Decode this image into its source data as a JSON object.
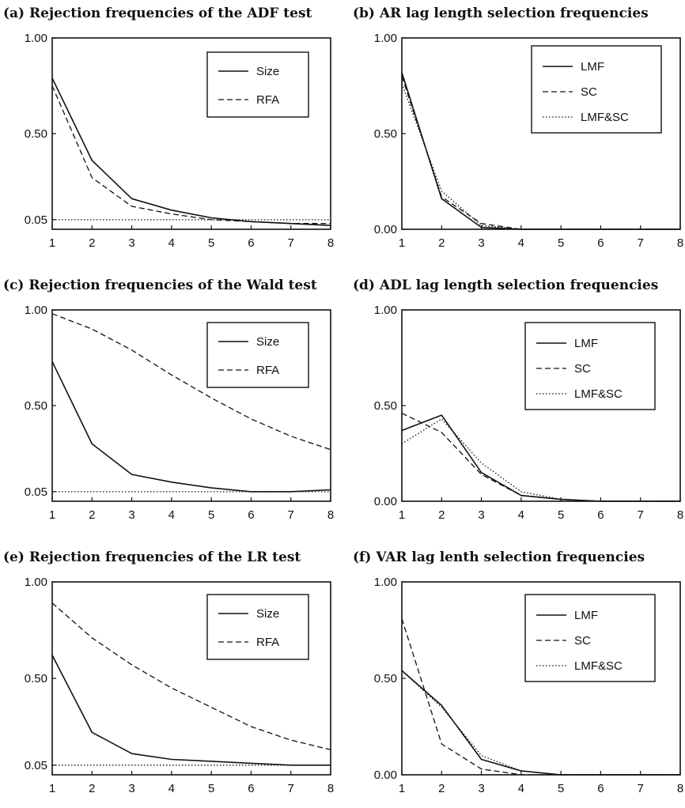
{
  "chart_data": [
    {
      "id": "a",
      "type": "line",
      "title": "(a) Rejection frequencies of the ADF test",
      "x": [
        1,
        2,
        3,
        4,
        5,
        6,
        7,
        8
      ],
      "ylim": [
        0.0,
        1.0
      ],
      "yticks": [
        {
          "value": 0.05,
          "label": "0.05"
        },
        {
          "value": 0.5,
          "label": "0.50"
        },
        {
          "value": 1.0,
          "label": "1.00"
        }
      ],
      "xticks": [
        "1",
        "2",
        "3",
        "4",
        "5",
        "6",
        "7",
        "8"
      ],
      "series": [
        {
          "name": "Size",
          "dash": "solid",
          "values": [
            0.79,
            0.36,
            0.16,
            0.1,
            0.06,
            0.04,
            0.03,
            0.02
          ]
        },
        {
          "name": "RFA",
          "dash": "dashed",
          "values": [
            0.75,
            0.27,
            0.12,
            0.08,
            0.05,
            0.04,
            0.03,
            0.03
          ]
        },
        {
          "name": "",
          "dash": "dotted",
          "values": [
            0.05,
            0.05,
            0.05,
            0.05,
            0.05,
            0.05,
            0.05,
            0.05
          ]
        }
      ]
    },
    {
      "id": "b",
      "type": "line",
      "title": "(b) AR lag length selection frequencies",
      "x": [
        1,
        2,
        3,
        4,
        5,
        6,
        7,
        8
      ],
      "ylim": [
        0.0,
        1.0
      ],
      "yticks": [
        {
          "value": 0.0,
          "label": "0.00"
        },
        {
          "value": 0.5,
          "label": "0.50"
        },
        {
          "value": 1.0,
          "label": "1.00"
        }
      ],
      "xticks": [
        "1",
        "2",
        "3",
        "4",
        "5",
        "6",
        "7",
        "8"
      ],
      "series": [
        {
          "name": "LMF",
          "dash": "solid",
          "values": [
            0.82,
            0.16,
            0.01,
            0.0,
            0.0,
            0.0,
            0.0,
            0.0
          ]
        },
        {
          "name": "SC",
          "dash": "dashed",
          "values": [
            0.8,
            0.17,
            0.03,
            0.0,
            0.0,
            0.0,
            0.0,
            0.0
          ]
        },
        {
          "name": "LMF&SC",
          "dash": "dotted",
          "values": [
            0.76,
            0.2,
            0.02,
            0.0,
            0.0,
            0.0,
            0.0,
            0.0
          ]
        }
      ]
    },
    {
      "id": "c",
      "type": "line",
      "title": "(c) Rejection frequencies of the Wald test",
      "x": [
        1,
        2,
        3,
        4,
        5,
        6,
        7,
        8
      ],
      "ylim": [
        0.0,
        1.0
      ],
      "yticks": [
        {
          "value": 0.05,
          "label": "0.05"
        },
        {
          "value": 0.5,
          "label": "0.50"
        },
        {
          "value": 1.0,
          "label": "1.00"
        }
      ],
      "xticks": [
        "1",
        "2",
        "3",
        "4",
        "5",
        "6",
        "7",
        "8"
      ],
      "series": [
        {
          "name": "Size",
          "dash": "solid",
          "values": [
            0.73,
            0.3,
            0.14,
            0.1,
            0.07,
            0.05,
            0.05,
            0.06
          ]
        },
        {
          "name": "RFA",
          "dash": "dashed",
          "values": [
            0.98,
            0.9,
            0.79,
            0.66,
            0.54,
            0.43,
            0.34,
            0.27
          ]
        },
        {
          "name": "",
          "dash": "dotted",
          "values": [
            0.05,
            0.05,
            0.05,
            0.05,
            0.05,
            0.05,
            0.05,
            0.05
          ]
        }
      ]
    },
    {
      "id": "d",
      "type": "line",
      "title": "(d) ADL lag length selection frequencies",
      "x": [
        1,
        2,
        3,
        4,
        5,
        6,
        7,
        8
      ],
      "ylim": [
        0.0,
        1.0
      ],
      "yticks": [
        {
          "value": 0.0,
          "label": "0.00"
        },
        {
          "value": 0.5,
          "label": "0.50"
        },
        {
          "value": 1.0,
          "label": "1.00"
        }
      ],
      "xticks": [
        "1",
        "2",
        "3",
        "4",
        "5",
        "6",
        "7",
        "8"
      ],
      "series": [
        {
          "name": "LMF",
          "dash": "solid",
          "values": [
            0.37,
            0.45,
            0.15,
            0.03,
            0.01,
            0.0,
            0.0,
            0.0
          ]
        },
        {
          "name": "SC",
          "dash": "dashed",
          "values": [
            0.46,
            0.36,
            0.14,
            0.03,
            0.01,
            0.0,
            0.0,
            0.0
          ]
        },
        {
          "name": "LMF&SC",
          "dash": "dotted",
          "values": [
            0.3,
            0.43,
            0.2,
            0.05,
            0.01,
            0.0,
            0.0,
            0.0
          ]
        }
      ]
    },
    {
      "id": "e",
      "type": "line",
      "title": "(e) Rejection frequencies of the LR test",
      "x": [
        1,
        2,
        3,
        4,
        5,
        6,
        7,
        8
      ],
      "ylim": [
        0.0,
        1.0
      ],
      "yticks": [
        {
          "value": 0.05,
          "label": "0.05"
        },
        {
          "value": 0.5,
          "label": "0.50"
        },
        {
          "value": 1.0,
          "label": "1.00"
        }
      ],
      "xticks": [
        "1",
        "2",
        "3",
        "4",
        "5",
        "6",
        "7",
        "8"
      ],
      "series": [
        {
          "name": "Size",
          "dash": "solid",
          "values": [
            0.62,
            0.22,
            0.11,
            0.08,
            0.07,
            0.06,
            0.05,
            0.05
          ]
        },
        {
          "name": "RFA",
          "dash": "dashed",
          "values": [
            0.89,
            0.71,
            0.57,
            0.45,
            0.35,
            0.25,
            0.18,
            0.13
          ]
        },
        {
          "name": "",
          "dash": "dotted",
          "values": [
            0.05,
            0.05,
            0.05,
            0.05,
            0.05,
            0.05,
            0.05,
            0.05
          ]
        }
      ]
    },
    {
      "id": "f",
      "type": "line",
      "title": "(f) VAR lag lenth selection frequencies",
      "x": [
        1,
        2,
        3,
        4,
        5,
        6,
        7,
        8
      ],
      "ylim": [
        0.0,
        1.0
      ],
      "yticks": [
        {
          "value": 0.0,
          "label": "0.00"
        },
        {
          "value": 0.5,
          "label": "0.50"
        },
        {
          "value": 1.0,
          "label": "1.00"
        }
      ],
      "xticks": [
        "1",
        "2",
        "3",
        "4",
        "5",
        "6",
        "7",
        "8"
      ],
      "series": [
        {
          "name": "LMF",
          "dash": "solid",
          "values": [
            0.54,
            0.36,
            0.08,
            0.02,
            0.0,
            0.0,
            0.0,
            0.0
          ]
        },
        {
          "name": "SC",
          "dash": "dashed",
          "values": [
            0.81,
            0.16,
            0.03,
            0.0,
            0.0,
            0.0,
            0.0,
            0.0
          ]
        },
        {
          "name": "LMF&SC",
          "dash": "dotted",
          "values": [
            0.54,
            0.35,
            0.1,
            0.02,
            0.0,
            0.0,
            0.0,
            0.0
          ]
        }
      ]
    }
  ]
}
